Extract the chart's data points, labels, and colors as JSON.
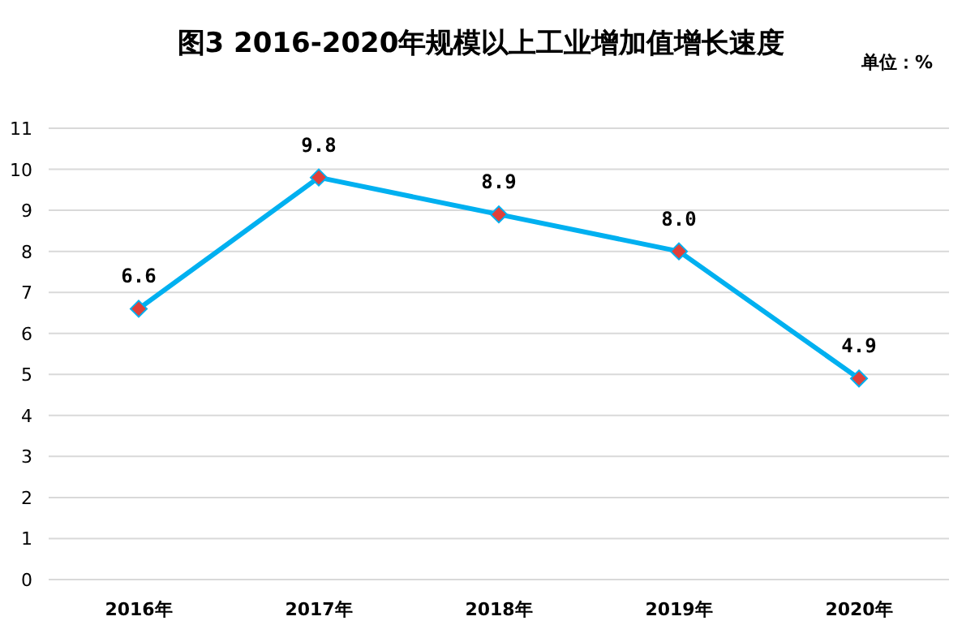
{
  "chart_data": {
    "type": "line",
    "title": "图3  2016-2020年规模以上工业增加值增长速度",
    "ylabel": "单位：%",
    "categories": [
      "2016年",
      "2017年",
      "2018年",
      "2019年",
      "2020年"
    ],
    "series": [
      {
        "color": "#00b0f0",
        "values": [
          6.6,
          9.8,
          8.9,
          8.0,
          4.9
        ],
        "value_labels": [
          "6.6",
          "9.8",
          "8.9",
          "8.0",
          "4.9"
        ]
      }
    ],
    "ylim": [
      0,
      11
    ],
    "yticks": [
      0,
      1,
      2,
      3,
      4,
      5,
      6,
      7,
      8,
      9,
      10,
      11
    ],
    "grid": "y",
    "marker": "diamond",
    "line_style": "solid"
  }
}
